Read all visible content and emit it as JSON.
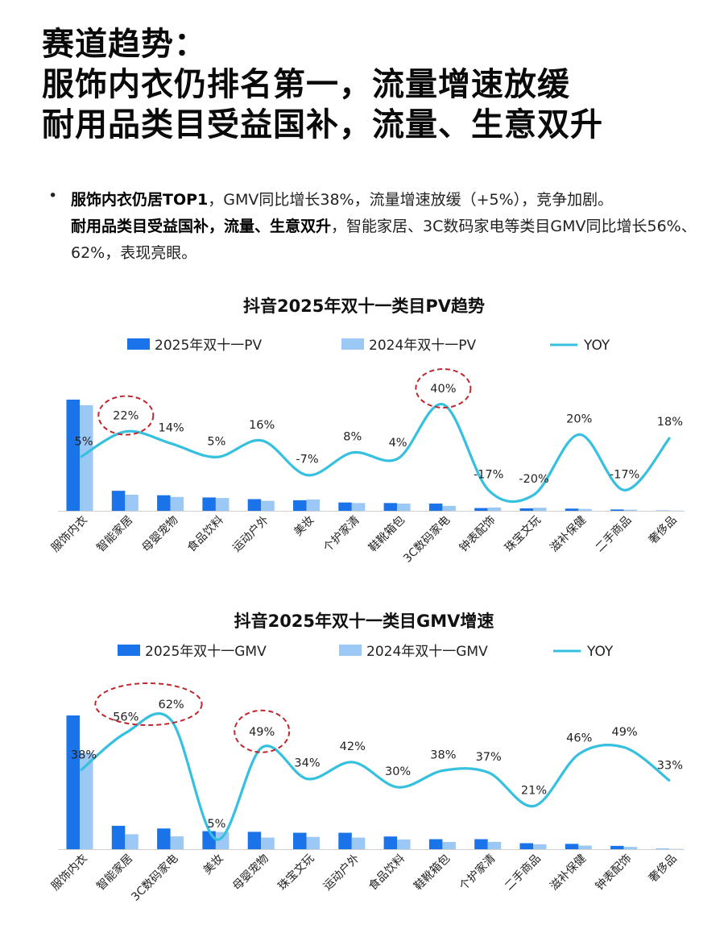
{
  "headline": {
    "line1": "赛道趋势：",
    "line2": "服饰内衣仍排名第一，流量增速放缓",
    "line3": "耐用品类目受益国补，流量、生意双升"
  },
  "bullet": {
    "marker": "•",
    "p1_bold": "服饰内衣仍居TOP1",
    "p1_rest": "，GMV同比增长38%，流量增速放缓（+5%），竞争加剧。",
    "p2_bold": "耐用品类目受益国补，流量、生意双升",
    "p2_rest": "，智能家居、3C数码家电等类目GMV同比增长56%、62%，表现亮眼。"
  },
  "colors": {
    "bar2025": "#1a73e8",
    "bar2024": "#9cc8f5",
    "yoy": "#36c0e0",
    "highlight": "#c0262d"
  },
  "chart_data": [
    {
      "type": "bar",
      "title": "抖音2025年双十一类目PV趋势",
      "legend": {
        "bar2025": "2025年双十一PV",
        "bar2024": "2024年双十一PV",
        "line": "YOY"
      },
      "categories": [
        "服饰内衣",
        "智能家居",
        "母婴宠物",
        "食品饮料",
        "运动户外",
        "美妆",
        "个护家清",
        "鞋靴箱包",
        "3C数码家电",
        "钟表配饰",
        "珠宝文玩",
        "滋补保健",
        "二手商品",
        "奢侈品"
      ],
      "series": [
        {
          "name": "2025年双十一PV",
          "values": [
            100,
            18,
            14,
            12,
            10.5,
            9.5,
            7.5,
            7,
            6.5,
            2.5,
            2.2,
            2,
            1.2,
            0.2
          ]
        },
        {
          "name": "2024年双十一PV",
          "values": [
            95,
            14.5,
            12.5,
            11.5,
            9,
            10.2,
            7,
            6.5,
            4.5,
            3,
            2.8,
            1.7,
            1,
            0.2
          ]
        },
        {
          "name": "YOY",
          "values": [
            5,
            22,
            14,
            5,
            16,
            -7,
            8,
            4,
            40,
            -17,
            -20,
            20,
            -17,
            18
          ]
        }
      ],
      "yoy_labels": [
        "5%",
        "22%",
        "14%",
        "5%",
        "16%",
        "-7%",
        "8%",
        "4%",
        "40%",
        "-17%",
        "-20%",
        "20%",
        "-17%",
        "18%"
      ],
      "highlighted": [
        1,
        8
      ]
    },
    {
      "type": "bar",
      "title": "抖音2025年双十一类目GMV增速",
      "legend": {
        "bar2025": "2025年双十一GMV",
        "bar2024": "2024年双十一GMV",
        "line": "YOY"
      },
      "categories": [
        "服饰内衣",
        "智能家居",
        "3C数码家电",
        "美妆",
        "母婴宠物",
        "珠宝文玩",
        "运动户外",
        "食品饮料",
        "鞋靴箱包",
        "个护家清",
        "二手商品",
        "滋补保健",
        "钟表配饰",
        "奢侈品"
      ],
      "series": [
        {
          "name": "2025年双十一GMV",
          "values": [
            100,
            17.5,
            15.5,
            13.5,
            13,
            12.3,
            12.3,
            9.5,
            7.5,
            7.5,
            4.5,
            4,
            2.5,
            0.3
          ]
        },
        {
          "name": "2024年双十一GMV",
          "values": [
            72,
            11.2,
            9.6,
            12.9,
            8.7,
            9.2,
            8.7,
            7.3,
            5.4,
            5.5,
            3.7,
            2.7,
            1.7,
            0.2
          ]
        },
        {
          "name": "YOY",
          "values": [
            38,
            56,
            62,
            5,
            49,
            34,
            42,
            30,
            38,
            37,
            21,
            46,
            49,
            33
          ]
        }
      ],
      "yoy_labels": [
        "38%",
        "56%",
        "62%",
        "5%",
        "49%",
        "34%",
        "42%",
        "30%",
        "38%",
        "37%",
        "21%",
        "46%",
        "49%",
        "33%"
      ],
      "highlighted": [
        1,
        2,
        4
      ]
    }
  ]
}
